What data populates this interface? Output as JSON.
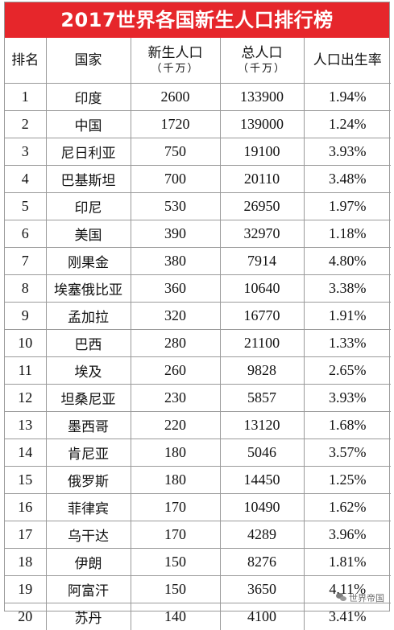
{
  "title": "2017世界各国新生人口排行榜",
  "headers": {
    "rank": "排名",
    "country": "国家",
    "births": "新生人口",
    "births_unit": "（千万）",
    "population": "总人口",
    "population_unit": "（千万）",
    "birth_rate": "人口出生率"
  },
  "rows": [
    {
      "rank": "1",
      "country": "印度",
      "births": "2600",
      "population": "133900",
      "rate": "1.94%"
    },
    {
      "rank": "2",
      "country": "中国",
      "births": "1720",
      "population": "139000",
      "rate": "1.24%"
    },
    {
      "rank": "3",
      "country": "尼日利亚",
      "births": "750",
      "population": "19100",
      "rate": "3.93%"
    },
    {
      "rank": "4",
      "country": "巴基斯坦",
      "births": "700",
      "population": "20110",
      "rate": "3.48%"
    },
    {
      "rank": "5",
      "country": "印尼",
      "births": "530",
      "population": "26950",
      "rate": "1.97%"
    },
    {
      "rank": "6",
      "country": "美国",
      "births": "390",
      "population": "32970",
      "rate": "1.18%"
    },
    {
      "rank": "7",
      "country": "刚果金",
      "births": "380",
      "population": "7914",
      "rate": "4.80%"
    },
    {
      "rank": "8",
      "country": "埃塞俄比亚",
      "births": "360",
      "population": "10640",
      "rate": "3.38%"
    },
    {
      "rank": "9",
      "country": "孟加拉",
      "births": "320",
      "population": "16770",
      "rate": "1.91%"
    },
    {
      "rank": "10",
      "country": "巴西",
      "births": "280",
      "population": "21100",
      "rate": "1.33%"
    },
    {
      "rank": "11",
      "country": "埃及",
      "births": "260",
      "population": "9828",
      "rate": "2.65%"
    },
    {
      "rank": "12",
      "country": "坦桑尼亚",
      "births": "230",
      "population": "5857",
      "rate": "3.93%"
    },
    {
      "rank": "13",
      "country": "墨西哥",
      "births": "220",
      "population": "13120",
      "rate": "1.68%"
    },
    {
      "rank": "14",
      "country": "肯尼亚",
      "births": "180",
      "population": "5046",
      "rate": "3.57%"
    },
    {
      "rank": "15",
      "country": "俄罗斯",
      "births": "180",
      "population": "14450",
      "rate": "1.25%"
    },
    {
      "rank": "16",
      "country": "菲律宾",
      "births": "170",
      "population": "10490",
      "rate": "1.62%"
    },
    {
      "rank": "17",
      "country": "乌干达",
      "births": "170",
      "population": "4289",
      "rate": "3.96%"
    },
    {
      "rank": "18",
      "country": "伊朗",
      "births": "150",
      "population": "8276",
      "rate": "1.81%"
    },
    {
      "rank": "19",
      "country": "阿富汗",
      "births": "150",
      "population": "3650",
      "rate": "4.11%"
    },
    {
      "rank": "20",
      "country": "苏丹",
      "births": "140",
      "population": "4100",
      "rate": "3.41%"
    }
  ],
  "watermark": {
    "icon": "wechat-icon",
    "text": "世界帝国"
  }
}
